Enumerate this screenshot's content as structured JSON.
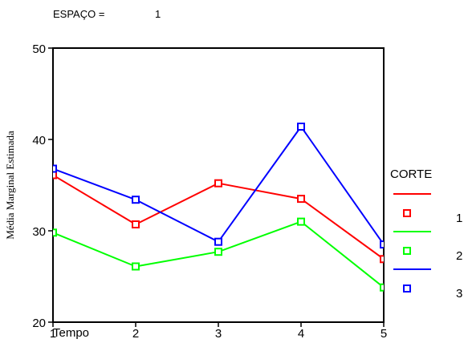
{
  "header": {
    "filter_label": "ESPAÇO =",
    "filter_value": "1"
  },
  "chart_data": {
    "type": "line",
    "title": "",
    "xlabel": "Tempo",
    "ylabel": "Média Marginal Estimada",
    "x": [
      1,
      2,
      3,
      4,
      5
    ],
    "xlim": [
      1,
      5
    ],
    "ylim": [
      20,
      50
    ],
    "yticks": [
      20,
      30,
      40,
      50
    ],
    "grid": false,
    "legend": {
      "title": "CORTE",
      "placement": "right"
    },
    "series": [
      {
        "name": "1",
        "color": "#ff0000",
        "values": [
          36.1,
          30.7,
          35.2,
          33.5,
          26.9
        ]
      },
      {
        "name": "2",
        "color": "#00ff00",
        "values": [
          29.8,
          26.1,
          27.7,
          31.0,
          23.8
        ]
      },
      {
        "name": "3",
        "color": "#0000ff",
        "values": [
          36.8,
          33.4,
          28.8,
          41.4,
          28.5
        ]
      }
    ]
  }
}
